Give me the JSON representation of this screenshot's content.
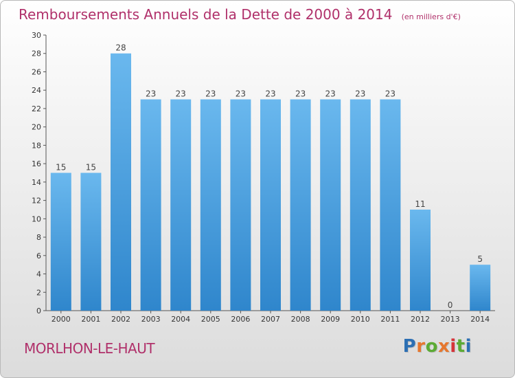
{
  "header": {
    "title": "Remboursements Annuels de la Dette de 2000 à 2014",
    "subtitle": "(en milliers d'€)"
  },
  "footer": {
    "commune": "MORLHON-LE-HAUT",
    "logo_text": "Proxiti"
  },
  "colors": {
    "bar_top": "#6ab8ee",
    "bar_bottom": "#2f86cc",
    "title": "#b0306a",
    "logo": [
      "#2c6fb3",
      "#e6772e",
      "#5cab35",
      "#e6772e",
      "#d6343a",
      "#5cab35",
      "#2c6fb3"
    ]
  },
  "chart_data": {
    "type": "bar",
    "title": "Remboursements Annuels de la Dette de 2000 à 2014",
    "subtitle": "(en milliers d'€)",
    "categories": [
      "2000",
      "2001",
      "2002",
      "2003",
      "2004",
      "2005",
      "2006",
      "2007",
      "2008",
      "2009",
      "2010",
      "2011",
      "2012",
      "2013",
      "2014"
    ],
    "values": [
      15,
      15,
      28,
      23,
      23,
      23,
      23,
      23,
      23,
      23,
      23,
      23,
      11,
      0,
      5
    ],
    "ylim": [
      0,
      30
    ],
    "yticks": [
      0,
      2,
      4,
      6,
      8,
      10,
      12,
      14,
      16,
      18,
      20,
      22,
      24,
      26,
      28,
      30
    ],
    "grid": false,
    "data_labels": true
  }
}
